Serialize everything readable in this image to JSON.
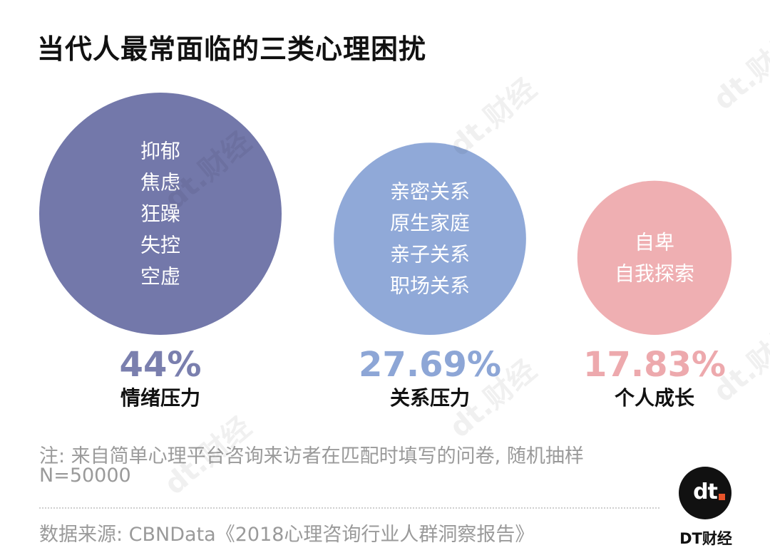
{
  "title": "当代人最常面临的三类心理困扰",
  "chart_data": {
    "type": "bubble",
    "title": "当代人最常面临的三类心理困扰",
    "items": [
      {
        "category": "情绪压力",
        "value": 44,
        "value_label": "44%",
        "topics": [
          "抑郁",
          "焦虑",
          "狂躁",
          "失控",
          "空虚"
        ],
        "color": "#7378aa"
      },
      {
        "category": "关系压力",
        "value": 27.69,
        "value_label": "27.69%",
        "topics": [
          "亲密关系",
          "原生家庭",
          "亲子关系",
          "职场关系"
        ],
        "color": "#90a9d8"
      },
      {
        "category": "个人成长",
        "value": 17.83,
        "value_label": "17.83%",
        "topics": [
          "自卑",
          "自我探索"
        ],
        "color": "#efafb2"
      }
    ],
    "value_colors": [
      "#7a7fae",
      "#8da6d6",
      "#eda9ad"
    ]
  },
  "note_line1": "注: 来自简单心理平台咨询来访者在匹配时填写的问卷, 随机抽样",
  "note_line2": "N=50000",
  "source": "数据来源: CBNData《2018心理咨询行业人群洞察报告》",
  "logo_text": "dt",
  "brand": "DT财经",
  "watermark_text": "dt.财经"
}
